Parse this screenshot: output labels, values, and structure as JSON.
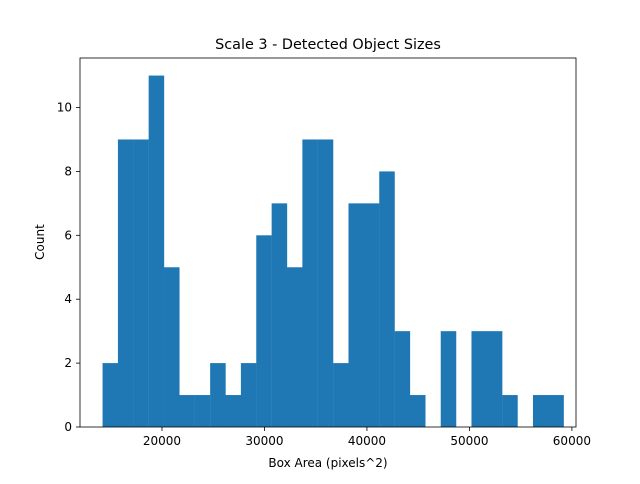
{
  "chart_data": {
    "type": "bar",
    "title": "Scale 3 - Detected Object Sizes",
    "xlabel": "Box Area (pixels^2)",
    "ylabel": "Count",
    "bin_start": 14200,
    "bin_width": 1500,
    "values": [
      2,
      9,
      9,
      11,
      5,
      1,
      1,
      2,
      1,
      2,
      6,
      7,
      5,
      9,
      9,
      2,
      7,
      7,
      8,
      3,
      1,
      0,
      3,
      0,
      3,
      3,
      1,
      0,
      1,
      1
    ],
    "xlim": [
      12000,
      60400
    ],
    "ylim": [
      0,
      11.55
    ],
    "xticks": [
      20000,
      30000,
      40000,
      50000,
      60000
    ],
    "xtick_labels": [
      "20000",
      "30000",
      "40000",
      "50000",
      "60000"
    ],
    "yticks": [
      0,
      2,
      4,
      6,
      8,
      10
    ],
    "ytick_labels": [
      "0",
      "2",
      "4",
      "6",
      "8",
      "10"
    ],
    "bar_color": "#1f77b4",
    "grid": false,
    "legend": false
  }
}
